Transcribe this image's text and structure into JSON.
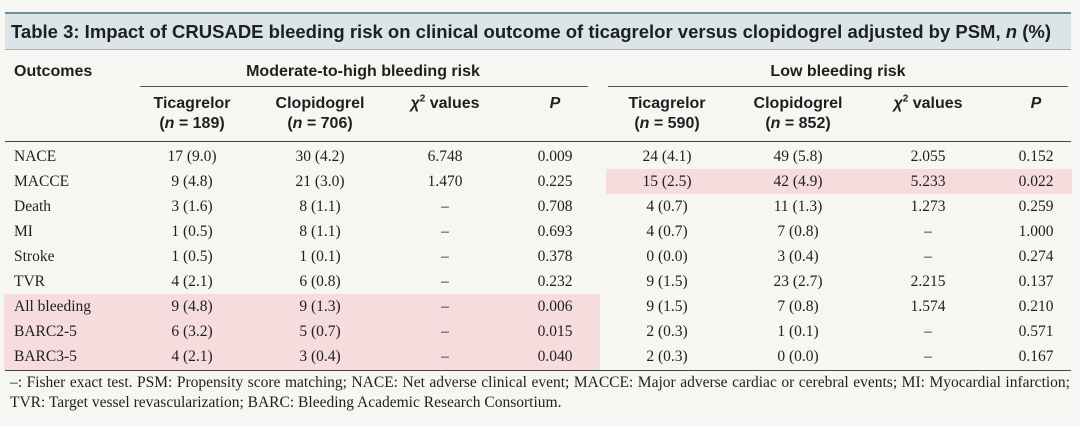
{
  "title": "Table 3: Impact of CRUSADE bleeding risk on clinical outcome of ticagrelor versus clopidogrel adjusted by PSM, n (%)",
  "title_main": "Table 3: Impact of CRUSADE bleeding risk on clinical outcome of ticagrelor versus clopidogrel adjusted by PSM, ",
  "title_n": "n",
  "title_tail": " (%)",
  "headers": {
    "outcomes": "Outcomes",
    "group1": "Moderate-to-high bleeding risk",
    "group2": "Low bleeding risk",
    "g1": {
      "ticagrelor": "Ticagrelor",
      "ticagrelor_n": "(n = 189)",
      "clopidogrel": "Clopidogrel",
      "clopidogrel_n": "(n = 706)",
      "chi": "χ",
      "chi_sup": "2",
      "chi_tail": " values",
      "p": "P"
    },
    "g2": {
      "ticagrelor": "Ticagrelor",
      "ticagrelor_n": "(n = 590)",
      "clopidogrel": "Clopidogrel",
      "clopidogrel_n": "(n = 852)",
      "chi": "χ",
      "chi_sup": "2",
      "chi_tail": " values",
      "p": "P"
    }
  },
  "rows": [
    {
      "outcome": "NACE",
      "t1": "17 (9.0)",
      "c1": "30 (4.2)",
      "x1": "6.748",
      "p1": "0.009",
      "t2": "24 (4.1)",
      "c2": "49 (5.8)",
      "x2": "2.055",
      "p2": "0.152"
    },
    {
      "outcome": "MACCE",
      "t1": "9 (4.8)",
      "c1": "21 (3.0)",
      "x1": "1.470",
      "p1": "0.225",
      "t2": "15 (2.5)",
      "c2": "42 (4.9)",
      "x2": "5.233",
      "p2": "0.022"
    },
    {
      "outcome": "Death",
      "t1": "3 (1.6)",
      "c1": "8 (1.1)",
      "x1": "–",
      "p1": "0.708",
      "t2": "4 (0.7)",
      "c2": "11 (1.3)",
      "x2": "1.273",
      "p2": "0.259"
    },
    {
      "outcome": "MI",
      "t1": "1 (0.5)",
      "c1": "8 (1.1)",
      "x1": "–",
      "p1": "0.693",
      "t2": "4 (0.7)",
      "c2": "7 (0.8)",
      "x2": "–",
      "p2": "1.000"
    },
    {
      "outcome": "Stroke",
      "t1": "1 (0.5)",
      "c1": "1 (0.1)",
      "x1": "–",
      "p1": "0.378",
      "t2": "0 (0.0)",
      "c2": "3 (0.4)",
      "x2": "–",
      "p2": "0.274"
    },
    {
      "outcome": "TVR",
      "t1": "4 (2.1)",
      "c1": "6 (0.8)",
      "x1": "–",
      "p1": "0.232",
      "t2": "9 (1.5)",
      "c2": "23 (2.7)",
      "x2": "2.215",
      "p2": "0.137"
    },
    {
      "outcome": "All bleeding",
      "t1": "9 (4.8)",
      "c1": "9 (1.3)",
      "x1": "–",
      "p1": "0.006",
      "t2": "9 (1.5)",
      "c2": "7 (0.8)",
      "x2": "1.574",
      "p2": "0.210"
    },
    {
      "outcome": "BARC2-5",
      "t1": "6 (3.2)",
      "c1": "5 (0.7)",
      "x1": "–",
      "p1": "0.015",
      "t2": "2 (0.3)",
      "c2": "1 (0.1)",
      "x2": "–",
      "p2": "0.571"
    },
    {
      "outcome": "BARC3-5",
      "t1": "4 (2.1)",
      "c1": "3 (0.4)",
      "x1": "–",
      "p1": "0.040",
      "t2": "2 (0.3)",
      "c2": "0 (0.0)",
      "x2": "–",
      "p2": "0.167"
    }
  ],
  "footnote": "–: Fisher exact test. PSM: Propensity score matching; NACE: Net adverse clinical event; MACCE: Major adverse cardiac or cerebral events; MI: Myocardial infarction; TVR: Target vessel revascularization; BARC: Bleeding Academic Research Consortium.",
  "colors": {
    "highlight": "#f6dcdc",
    "title_bg": "#dbe4e6",
    "rule": "#6a8f9a"
  }
}
